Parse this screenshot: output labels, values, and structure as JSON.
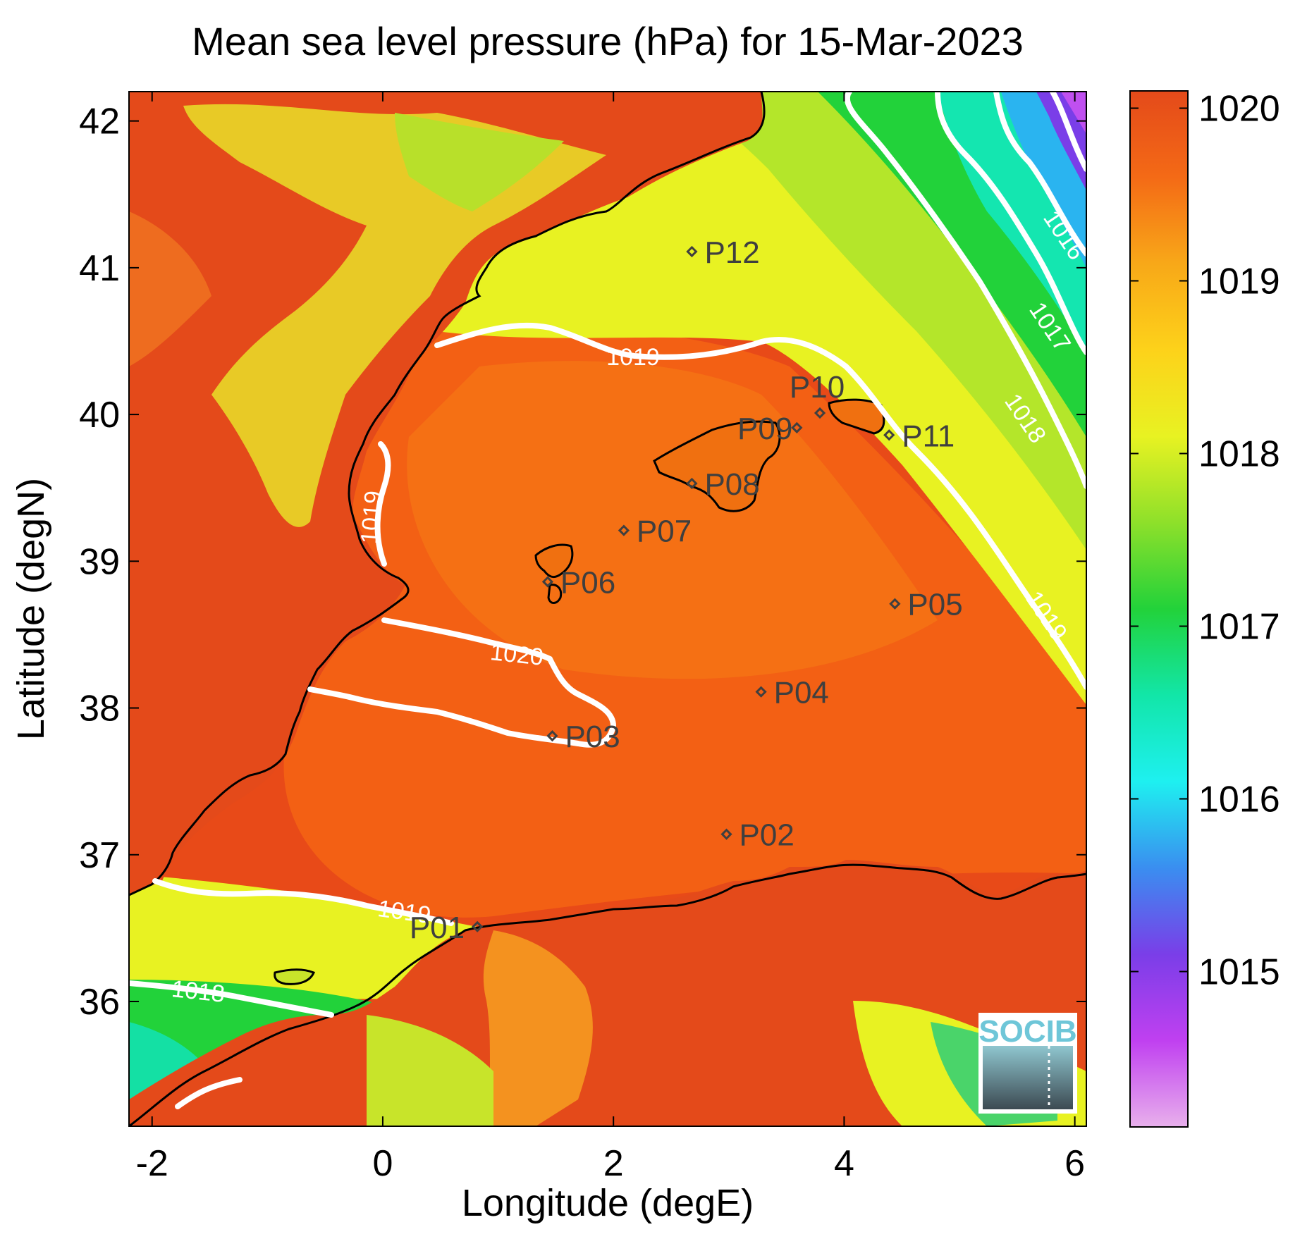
{
  "title": "Mean sea level pressure (hPa) for 15-Mar-2023",
  "axes": {
    "xlabel": "Longitude (degE)",
    "ylabel": "Latitude (degN)",
    "xlim": [
      -2.2,
      6.1
    ],
    "ylim": [
      35.15,
      42.2
    ],
    "xticks": [
      "-2",
      "0",
      "2",
      "4",
      "6"
    ],
    "yticks": [
      "36",
      "37",
      "38",
      "39",
      "40",
      "41",
      "42"
    ]
  },
  "colorbar": {
    "range": [
      1014.1,
      1020.1
    ],
    "ticks": [
      "1015",
      "1016",
      "1017",
      "1018",
      "1019",
      "1020"
    ],
    "colors": [
      "#e8b0ec",
      "#c040f0",
      "#7a3ee8",
      "#3a8ef0",
      "#1ef0f0",
      "#12e6a8",
      "#22d23a",
      "#8ee02a",
      "#e8f222",
      "#fdd21a",
      "#f8a818",
      "#f46a16",
      "#e44a1a"
    ]
  },
  "colors": {
    "sea_high": "#e84a18",
    "coastline": "#000000",
    "contour": "#ffffff",
    "station_marker": "#3f3f3f"
  },
  "contour_labels": [
    "1016",
    "1017",
    "1018",
    "1019",
    "1019",
    "1019",
    "1020",
    "1019",
    "1018"
  ],
  "stations": [
    {
      "id": "P01",
      "lon": 0.82,
      "lat": 36.51
    },
    {
      "id": "P02",
      "lon": 2.98,
      "lat": 37.14
    },
    {
      "id": "P03",
      "lon": 1.47,
      "lat": 37.81
    },
    {
      "id": "P04",
      "lon": 3.28,
      "lat": 38.11
    },
    {
      "id": "P05",
      "lon": 4.44,
      "lat": 38.71
    },
    {
      "id": "P06",
      "lon": 1.43,
      "lat": 38.86
    },
    {
      "id": "P07",
      "lon": 2.09,
      "lat": 39.21
    },
    {
      "id": "P08",
      "lon": 2.68,
      "lat": 39.53
    },
    {
      "id": "P09",
      "lon": 3.59,
      "lat": 39.91
    },
    {
      "id": "P10",
      "lon": 3.79,
      "lat": 40.01
    },
    {
      "id": "P11",
      "lon": 4.39,
      "lat": 39.86
    },
    {
      "id": "P12",
      "lon": 2.68,
      "lat": 41.11
    }
  ],
  "logo_text": "SOCIB"
}
